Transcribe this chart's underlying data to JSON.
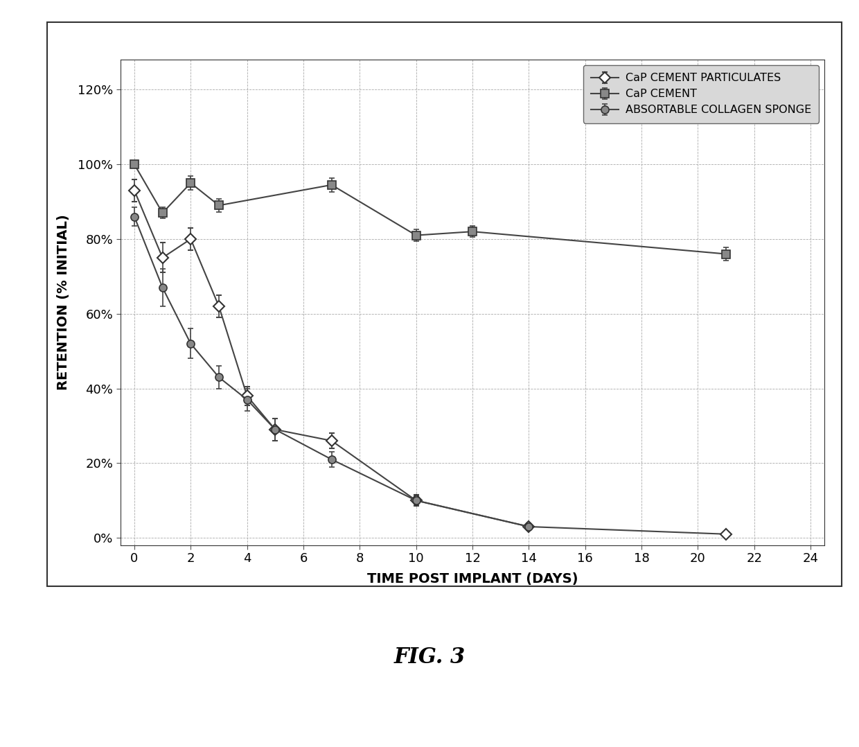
{
  "cap_particulates": {
    "x": [
      0,
      1,
      2,
      3,
      4,
      5,
      7,
      10,
      14,
      21
    ],
    "y": [
      0.93,
      0.75,
      0.8,
      0.62,
      0.38,
      0.29,
      0.26,
      0.1,
      0.03,
      0.01
    ],
    "yerr": [
      0.03,
      0.04,
      0.03,
      0.03,
      0.025,
      0.03,
      0.02,
      0.015,
      0.01,
      0.005
    ],
    "label": "CaP CEMENT PARTICULATES",
    "marker": "D",
    "mfc": "white",
    "mec": "#333333"
  },
  "cap_cement": {
    "x": [
      0,
      1,
      2,
      3,
      7,
      10,
      12,
      21
    ],
    "y": [
      1.0,
      0.87,
      0.95,
      0.89,
      0.945,
      0.81,
      0.82,
      0.76
    ],
    "yerr": [
      0.008,
      0.015,
      0.018,
      0.018,
      0.018,
      0.015,
      0.015,
      0.018
    ],
    "label": "CaP CEMENT",
    "marker": "s",
    "mfc": "#888888",
    "mec": "#333333"
  },
  "collagen_sponge": {
    "x": [
      0,
      1,
      2,
      3,
      4,
      5,
      7,
      10,
      14
    ],
    "y": [
      0.86,
      0.67,
      0.52,
      0.43,
      0.37,
      0.29,
      0.21,
      0.1,
      0.03
    ],
    "yerr": [
      0.025,
      0.05,
      0.04,
      0.03,
      0.03,
      0.03,
      0.02,
      0.012,
      0.008
    ],
    "label": "ABSORTABLE COLLAGEN SPONGE",
    "marker": "o",
    "mfc": "#888888",
    "mec": "#333333"
  },
  "xlabel": "TIME POST IMPLANT (DAYS)",
  "ylabel": "RETENTION (% INITIAL)",
  "fig_label": "FIG. 3",
  "xlim": [
    -0.5,
    24.5
  ],
  "ylim": [
    -0.02,
    1.28
  ],
  "xticks": [
    0,
    2,
    4,
    6,
    8,
    10,
    12,
    14,
    16,
    18,
    20,
    22,
    24
  ],
  "yticks": [
    0.0,
    0.2,
    0.4,
    0.6,
    0.8,
    1.0,
    1.2
  ],
  "ytick_labels": [
    "0%",
    "20%",
    "40%",
    "60%",
    "80%",
    "100%",
    "120%"
  ],
  "line_color": "#444444",
  "plot_bg": "white",
  "fig_bg": "white"
}
